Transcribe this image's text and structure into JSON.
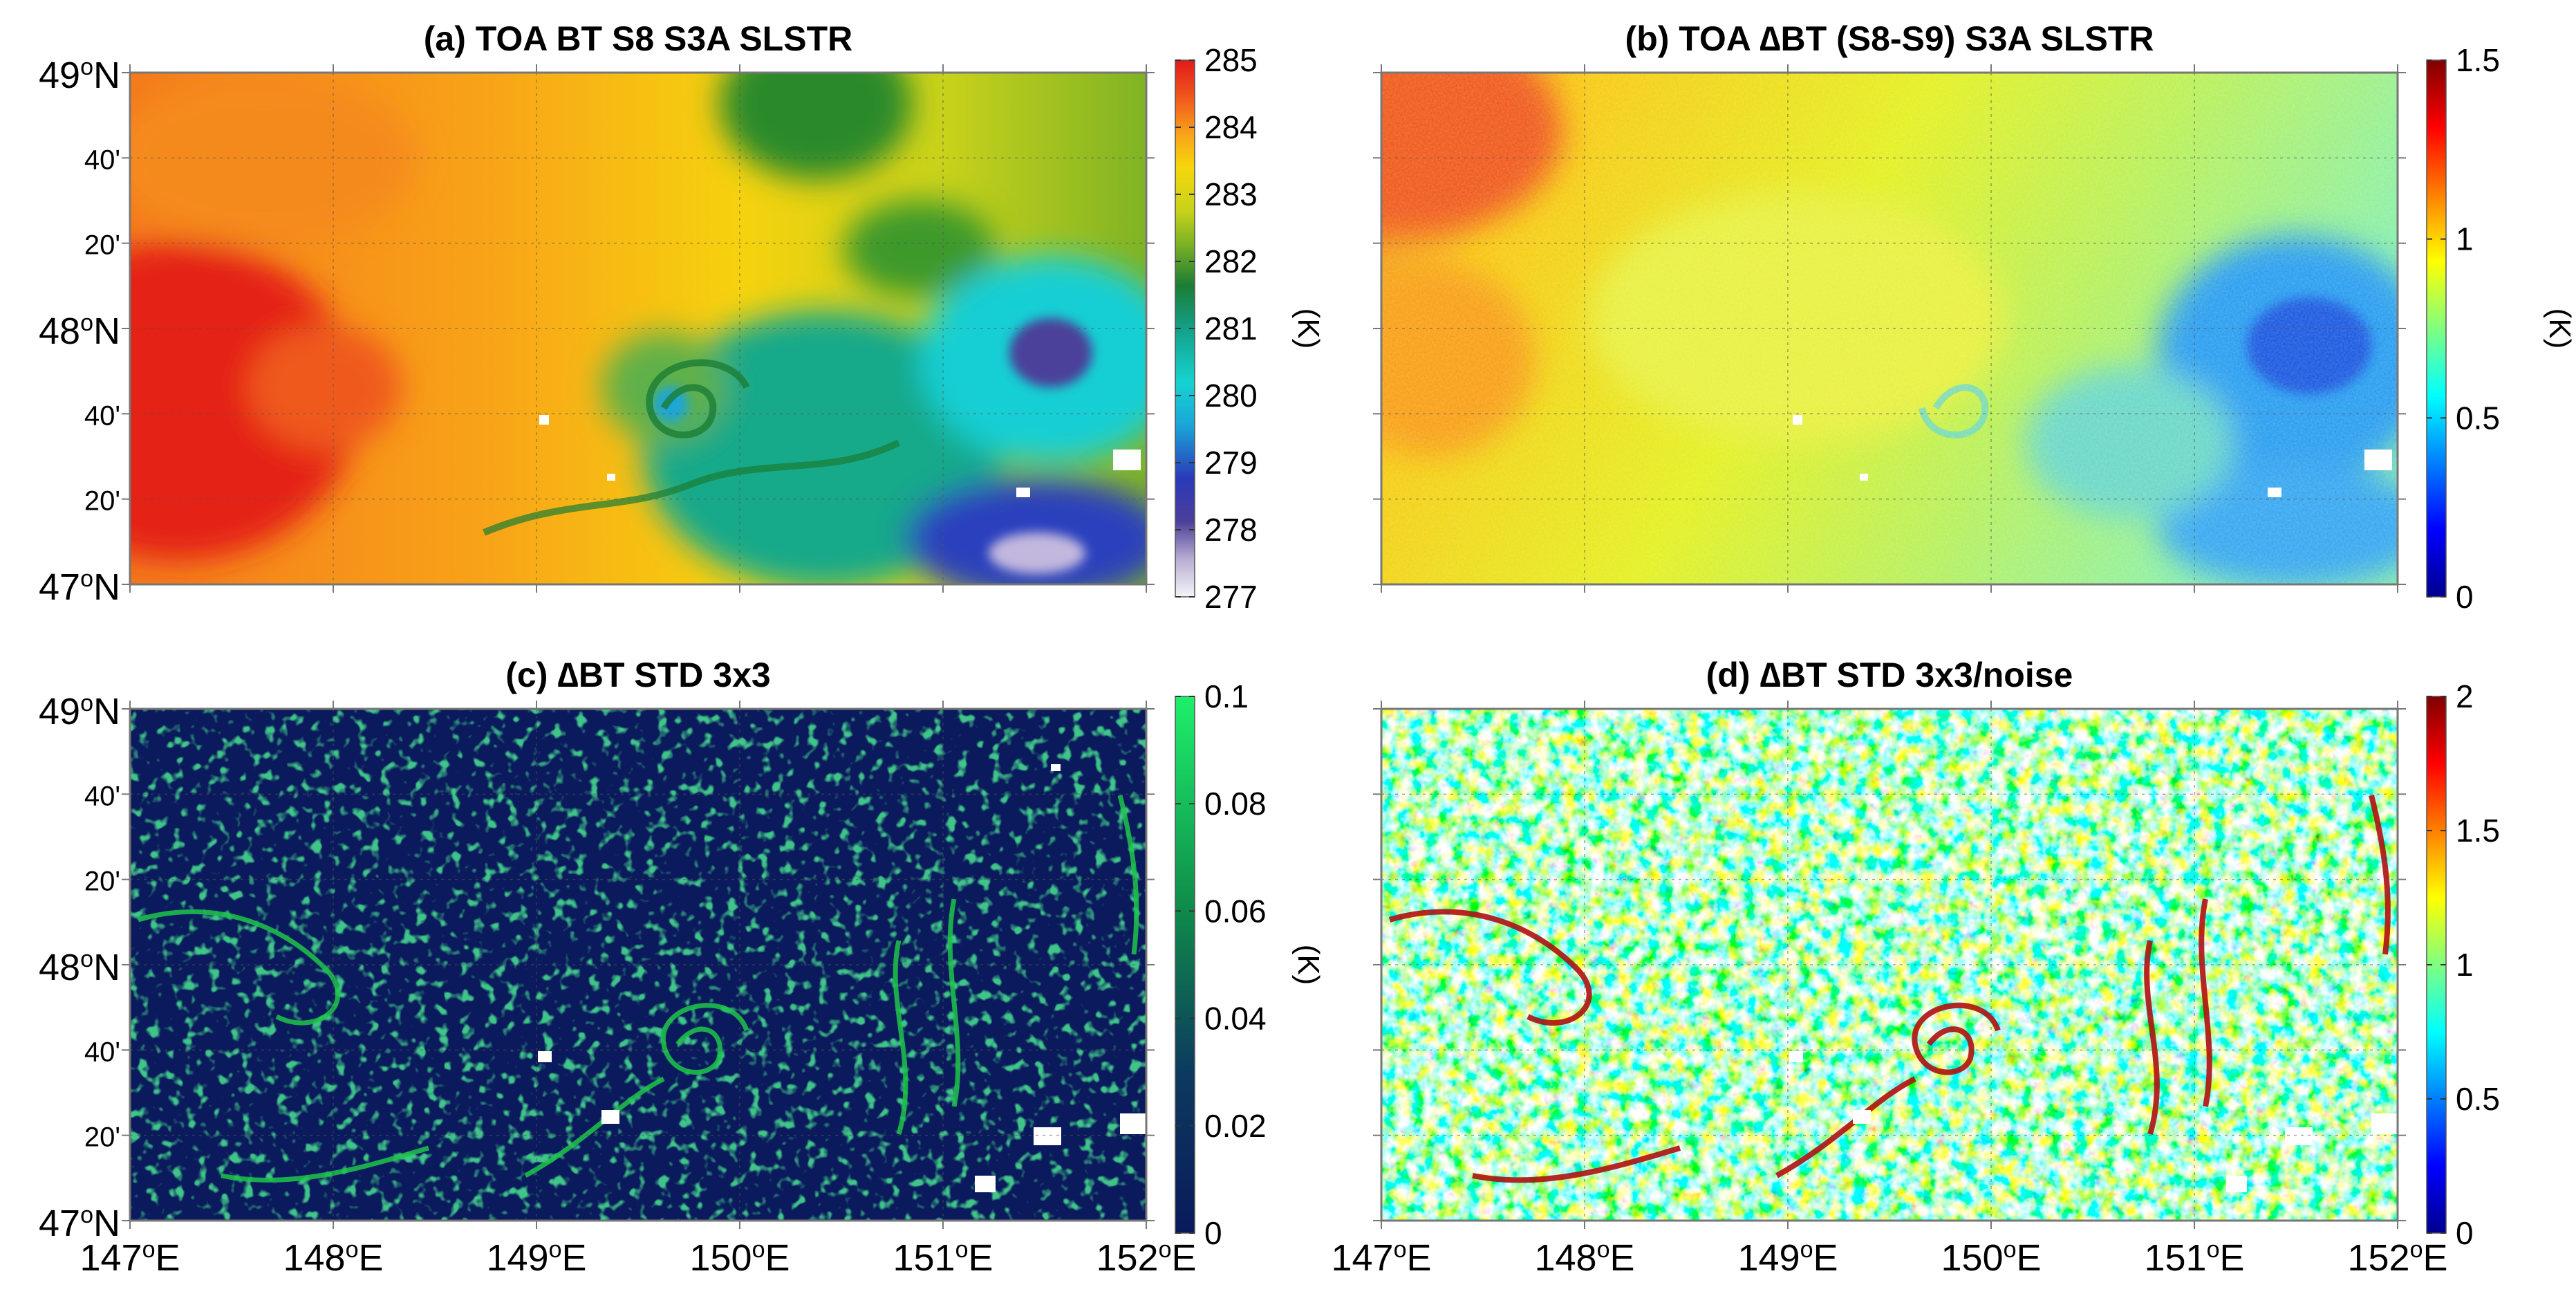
{
  "figure": {
    "lat_tick_labels": [
      "49",
      "40'",
      "20'",
      "48",
      "40'",
      "20'",
      "47"
    ],
    "lon_tick_labels": [
      "147",
      "148",
      "149",
      "150",
      "151",
      "152"
    ],
    "lat_suffix": "N",
    "lon_suffix": "E",
    "degree_mark": "o"
  },
  "chart_data": [
    {
      "id": "a",
      "type": "heatmap",
      "title": "(a) TOA BT S8 S3A SLSTR",
      "xlabel": "",
      "ylabel": "",
      "xlim": [
        147,
        152
      ],
      "ylim": [
        47,
        49
      ],
      "colorbar": {
        "label": "(K)",
        "range": [
          277,
          285
        ],
        "ticks": [
          "277",
          "278",
          "279",
          "280",
          "281",
          "282",
          "283",
          "284",
          "285"
        ],
        "colormap": "sst"
      },
      "show_lat_labels": true,
      "show_lon_labels": false
    },
    {
      "id": "b",
      "type": "heatmap",
      "title": "(b) TOA ∆BT (S8-S9) S3A SLSTR",
      "xlabel": "",
      "ylabel": "",
      "xlim": [
        147,
        152
      ],
      "ylim": [
        47,
        49
      ],
      "colorbar": {
        "label": "(K)",
        "range": [
          0,
          1.5
        ],
        "ticks": [
          "0",
          "0.5",
          "1",
          "1.5"
        ],
        "colormap": "jet"
      },
      "show_lat_labels": false,
      "show_lon_labels": false
    },
    {
      "id": "c",
      "type": "heatmap",
      "title": "(c) ∆BT STD 3x3",
      "xlabel": "",
      "ylabel": "",
      "xlim": [
        147,
        152
      ],
      "ylim": [
        47,
        49
      ],
      "colorbar": {
        "label": "(K)",
        "range": [
          0,
          0.1
        ],
        "ticks": [
          "0",
          "0.02",
          "0.04",
          "0.06",
          "0.08",
          "0.1"
        ],
        "colormap": "navy-green"
      },
      "show_lat_labels": true,
      "show_lon_labels": true
    },
    {
      "id": "d",
      "type": "heatmap",
      "title": "(d) ∆BT STD 3x3/noise",
      "xlabel": "",
      "ylabel": "",
      "xlim": [
        147,
        152
      ],
      "ylim": [
        47,
        49
      ],
      "colorbar": {
        "label": "",
        "range": [
          0,
          2
        ],
        "ticks": [
          "0",
          "0.5",
          "1",
          "1.5",
          "2"
        ],
        "colormap": "jet"
      },
      "show_lat_labels": false,
      "show_lon_labels": true
    }
  ]
}
